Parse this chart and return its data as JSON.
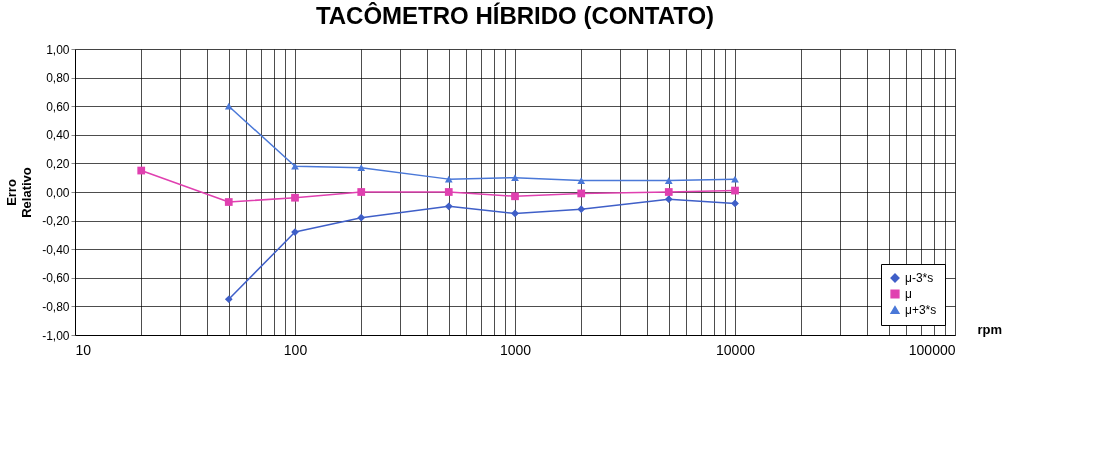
{
  "chart_data": {
    "type": "line",
    "title": "TACÔMETRO HÍBRIDO (CONTATO)",
    "xlabel": "rpm",
    "ylabel": "Erro Relativo",
    "x": [
      20,
      50,
      100,
      200,
      500,
      1000,
      2000,
      5000,
      10000
    ],
    "series": [
      {
        "name": "μ-3*s",
        "color": "#3f5fc8",
        "marker": "diamond",
        "values": [
          null,
          -0.75,
          -0.28,
          -0.18,
          -0.1,
          -0.15,
          -0.12,
          -0.05,
          -0.08
        ]
      },
      {
        "name": "μ",
        "color": "#e040b0",
        "marker": "square",
        "values": [
          0.15,
          -0.07,
          -0.04,
          0.0,
          0.0,
          -0.03,
          -0.01,
          0.0,
          0.01
        ]
      },
      {
        "name": "μ+3*s",
        "color": "#4a78d8",
        "marker": "triangle",
        "values": [
          null,
          0.6,
          0.18,
          0.17,
          0.09,
          0.1,
          0.08,
          0.08,
          0.09
        ]
      }
    ],
    "log": "x",
    "xlim": [
      10,
      100000
    ],
    "xticks": [
      10,
      {
        "value": 20,
        "label": null
      },
      {
        "value": 30,
        "label": null
      },
      {
        "value": 40,
        "label": null
      },
      {
        "value": 50,
        "label": null
      },
      {
        "value": 60,
        "label": null
      },
      {
        "value": 70,
        "label": null
      },
      {
        "value": 80,
        "label": null
      },
      {
        "value": 90,
        "label": null
      },
      100,
      {
        "value": 200,
        "label": null
      },
      {
        "value": 300,
        "label": null
      },
      {
        "value": 400,
        "label": null
      },
      {
        "value": 500,
        "label": null
      },
      {
        "value": 600,
        "label": null
      },
      {
        "value": 700,
        "label": null
      },
      {
        "value": 800,
        "label": null
      },
      {
        "value": 900,
        "label": null
      },
      1000,
      {
        "value": 2000,
        "label": null
      },
      {
        "value": 3000,
        "label": null
      },
      {
        "value": 4000,
        "label": null
      },
      {
        "value": 5000,
        "label": null
      },
      {
        "value": 6000,
        "label": null
      },
      {
        "value": 7000,
        "label": null
      },
      {
        "value": 8000,
        "label": null
      },
      {
        "value": 9000,
        "label": null
      },
      10000,
      {
        "value": 20000,
        "label": null
      },
      {
        "value": 30000,
        "label": null
      },
      {
        "value": 40000,
        "label": null
      },
      {
        "value": 50000,
        "label": null
      },
      {
        "value": 60000,
        "label": null
      },
      {
        "value": 70000,
        "label": null
      },
      {
        "value": 80000,
        "label": null
      },
      {
        "value": 90000,
        "label": null
      },
      100000
    ],
    "ylim": [
      -1.0,
      1.0
    ],
    "yticks": [
      {
        "value": -1.0,
        "label": "-1,00"
      },
      {
        "value": -0.8,
        "label": "-0,80"
      },
      {
        "value": -0.6,
        "label": "-0,60"
      },
      {
        "value": -0.4,
        "label": "-0,40"
      },
      {
        "value": -0.2,
        "label": "-0,20"
      },
      {
        "value": 0.0,
        "label": "0,00"
      },
      {
        "value": 0.2,
        "label": "0,20"
      },
      {
        "value": 0.4,
        "label": "0,40"
      },
      {
        "value": 0.6,
        "label": "0,60"
      },
      {
        "value": 0.8,
        "label": "0,80"
      },
      {
        "value": 1.0,
        "label": "1,00"
      }
    ],
    "grid": true,
    "legend": "bottom right",
    "line_style": "solid"
  }
}
